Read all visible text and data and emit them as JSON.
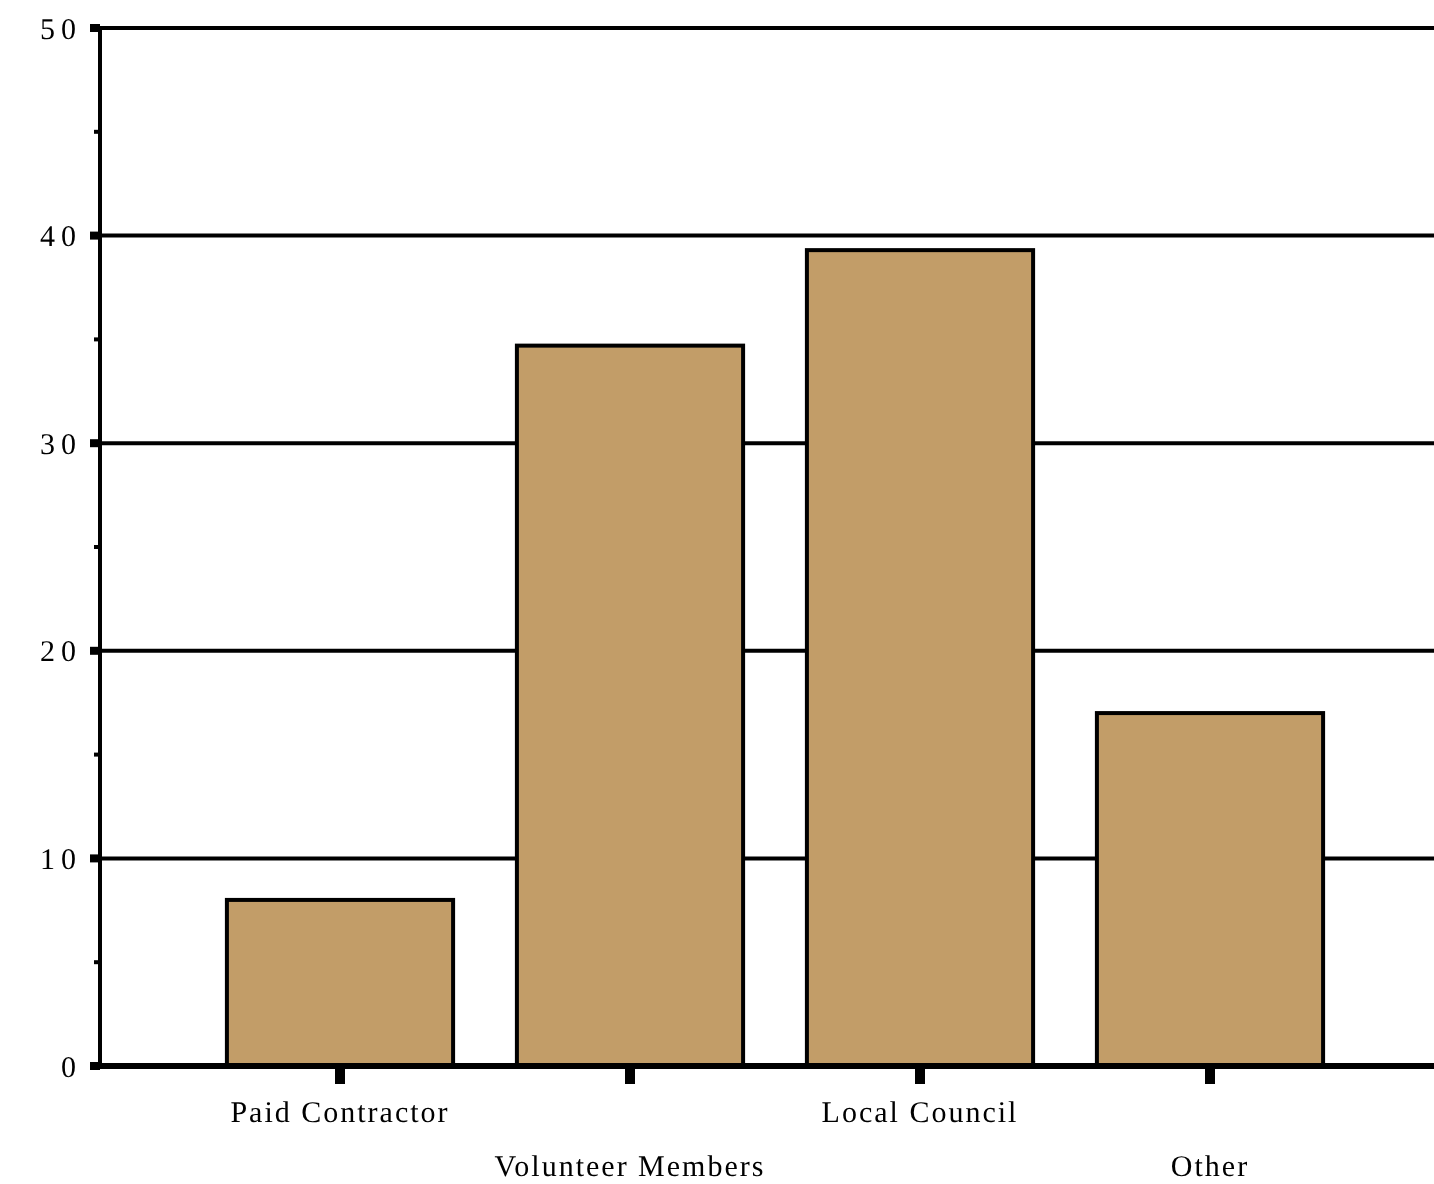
{
  "chart_data": {
    "type": "bar",
    "categories": [
      "Paid Contractor",
      "Volunteer Members",
      "Local Council",
      "Other"
    ],
    "values": [
      8,
      34.7,
      39.3,
      17
    ],
    "color": "#c29d68",
    "ylim": [
      0,
      50
    ],
    "yticks": [
      0,
      {
        "value": 5,
        "label": null
      },
      10,
      {
        "value": 15,
        "label": null
      },
      20,
      {
        "value": 25,
        "label": null
      },
      30,
      {
        "value": 35,
        "label": null
      },
      40,
      {
        "value": 45,
        "label": null
      },
      50
    ],
    "grid": "y"
  }
}
